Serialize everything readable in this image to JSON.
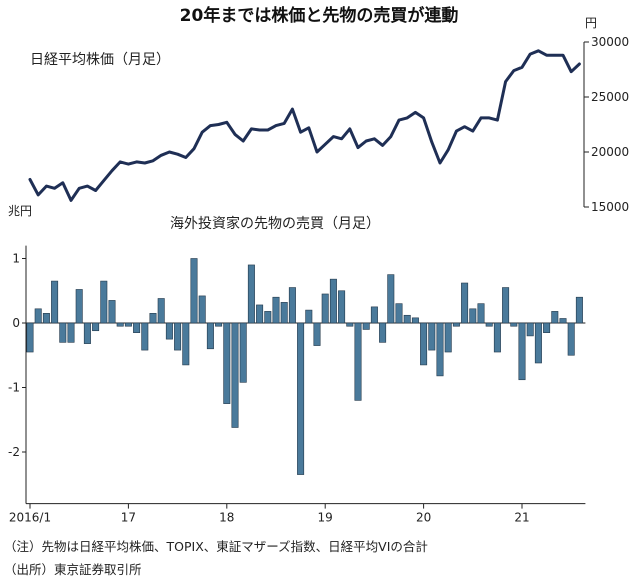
{
  "chart_data": [
    {
      "type": "line",
      "title": "20年までは株価と先物の売買が連動",
      "subtitle": "日経平均株価（月足）",
      "yunit": "円",
      "ylim": [
        15000,
        30000
      ],
      "yticks": [
        15000,
        20000,
        25000,
        30000
      ],
      "series": [
        {
          "name": "日経平均株価（月足）",
          "color": "#1f2f55",
          "values": [
            17500,
            16100,
            16900,
            16700,
            17200,
            15600,
            16700,
            16900,
            16500,
            17400,
            18300,
            19100,
            18900,
            19100,
            19000,
            19200,
            19700,
            20000,
            19800,
            19500,
            20300,
            21800,
            22400,
            22500,
            22700,
            21600,
            21000,
            22100,
            22000,
            22000,
            22400,
            22600,
            23900,
            21800,
            22200,
            20000,
            20700,
            21400,
            21200,
            22100,
            20400,
            21000,
            21200,
            20600,
            21400,
            22900,
            23100,
            23600,
            23100,
            20900,
            19000,
            20200,
            21900,
            22300,
            21900,
            23100,
            23100,
            22900,
            26400,
            27400,
            27700,
            28900,
            29200,
            28800,
            28800,
            28800,
            27300,
            28000
          ]
        }
      ]
    },
    {
      "type": "bar",
      "subtitle": "海外投資家の先物の売買（月足）",
      "yunit": "兆円",
      "ylim": [
        -2.8,
        1.2
      ],
      "yticks": [
        -2,
        -1,
        0,
        1
      ],
      "xtick_labels": [
        "2016/1",
        "17",
        "18",
        "19",
        "20",
        "21"
      ],
      "series": [
        {
          "name": "海外投資家の先物の売買（月足）",
          "color": "#4a7a9b",
          "values": [
            -0.45,
            0.22,
            0.15,
            0.65,
            -0.3,
            -0.3,
            0.52,
            -0.32,
            -0.12,
            0.65,
            0.35,
            -0.05,
            -0.05,
            -0.15,
            -0.42,
            0.15,
            0.38,
            -0.25,
            -0.42,
            -0.65,
            1.0,
            0.42,
            -0.4,
            -0.05,
            -1.25,
            -1.62,
            -0.92,
            0.9,
            0.28,
            0.18,
            0.4,
            0.32,
            0.55,
            -2.35,
            0.2,
            -0.35,
            0.45,
            0.68,
            0.5,
            -0.05,
            -1.2,
            -0.1,
            0.25,
            -0.3,
            0.75,
            0.3,
            0.12,
            0.08,
            -0.65,
            -0.42,
            -0.82,
            -0.45,
            -0.05,
            0.62,
            0.22,
            0.3,
            -0.05,
            -0.45,
            0.55,
            -0.05,
            -0.88,
            -0.2,
            -0.62,
            -0.15,
            0.18,
            0.07,
            -0.5,
            0.4
          ]
        }
      ]
    }
  ],
  "notes": {
    "note1": "（注）先物は日経平均株価、TOPIX、東証マザーズ指数、日経平均VIの合計",
    "note2": "（出所）東京証券取引所"
  }
}
